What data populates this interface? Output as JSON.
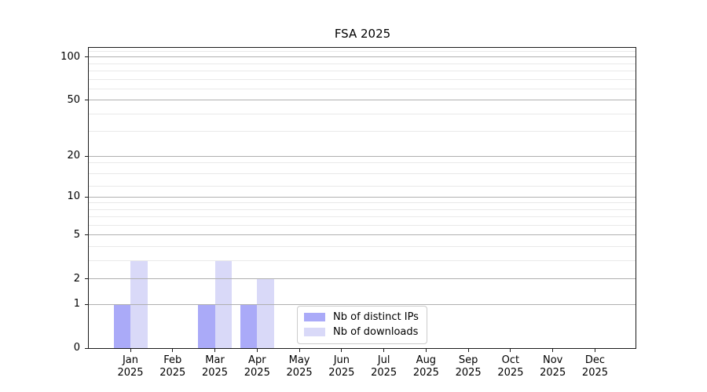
{
  "title": "FSA 2025",
  "chart_data": {
    "type": "bar",
    "title": "FSA 2025",
    "categories": [
      "Jan",
      "Feb",
      "Mar",
      "Apr",
      "May",
      "Jun",
      "Jul",
      "Aug",
      "Sep",
      "Oct",
      "Nov",
      "Dec"
    ],
    "year_label": "2025",
    "series": [
      {
        "name": "Nb of distinct IPs",
        "color": "#aaaaf8",
        "values": [
          1,
          0,
          1,
          1,
          0,
          0,
          0,
          0,
          0,
          0,
          0,
          0
        ]
      },
      {
        "name": "Nb of downloads",
        "color": "#d9d9f8",
        "values": [
          3,
          0,
          3,
          2,
          0,
          0,
          0,
          0,
          0,
          0,
          0,
          0
        ]
      }
    ],
    "yscale": "log1p",
    "ylim": [
      0,
      117.6
    ],
    "y_major_ticks": [
      0,
      1,
      2,
      5,
      10,
      20,
      50,
      100
    ],
    "y_minor_ticks": [
      3,
      4,
      6,
      7,
      8,
      9,
      12,
      15,
      18,
      30,
      40,
      60,
      70,
      80,
      90,
      110
    ],
    "grid": true,
    "legend_position": "lower-center"
  },
  "colors": {
    "bar_distinct_ips": "#aaaaf8",
    "bar_downloads": "#d9d9f8",
    "grid_major": "#b0b0b0",
    "grid_minor": "#e9e9e9",
    "spine": "#1a1a1a",
    "legend_border": "#cccccc",
    "text": "#000000",
    "background": "#ffffff"
  }
}
